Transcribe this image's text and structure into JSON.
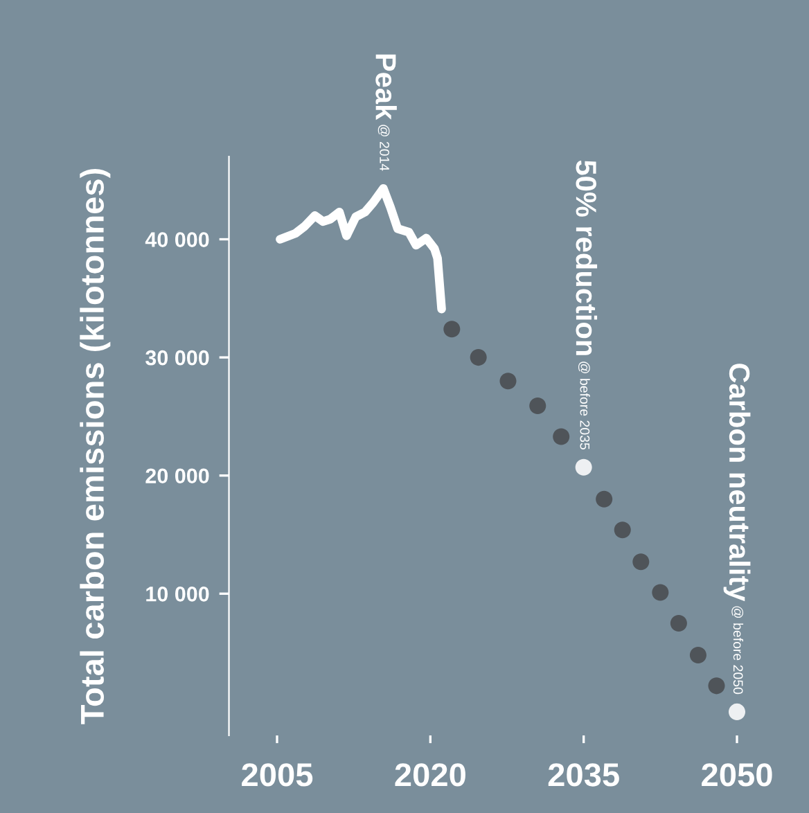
{
  "chart_data": {
    "type": "line",
    "ylabel": "Total carbon emissions (kilotonnes)",
    "xlim": [
      2005,
      2050
    ],
    "xticks": [
      2005,
      2020,
      2035,
      2050
    ],
    "ylim": [
      -2000,
      47000
    ],
    "yticks": [
      {
        "value": 10000,
        "label": "10 000"
      },
      {
        "value": 20000,
        "label": "20 000"
      },
      {
        "value": 30000,
        "label": "30 000"
      },
      {
        "value": 40000,
        "label": "40 000"
      }
    ],
    "series": [
      {
        "color": "#ffffff",
        "marker": "none",
        "x": [
          2005.3,
          2006.8,
          2007.7,
          2008.7,
          2009.5,
          2010.2,
          2011.1,
          2011.8,
          2012.7,
          2013.6,
          2014.4,
          2015.4,
          2016.1,
          2016.8,
          2017.9,
          2018.6,
          2019.6,
          2020.4,
          2020.7,
          2021.1
        ],
        "values": [
          40000,
          40500,
          41100,
          42000,
          41500,
          41700,
          42300,
          40300,
          41900,
          42300,
          43100,
          44300,
          42700,
          40900,
          40600,
          39500,
          40100,
          39200,
          38400,
          34100
        ]
      },
      {
        "type": "scatter",
        "color": "#4f5459",
        "marker": "circle",
        "x": [
          2022.1,
          2024.7,
          2027.6,
          2030.5,
          2032.8,
          2037,
          2038.8,
          2040.6,
          2042.5,
          2044.3,
          2046.2,
          2048
        ],
        "values": [
          32400,
          30000,
          28000,
          25900,
          23300,
          18000,
          15400,
          12700,
          10100,
          7500,
          4800,
          2200
        ]
      },
      {
        "type": "scatter",
        "color": "#eef0f2",
        "marker": "circle",
        "x": [
          2035,
          2050
        ],
        "values": [
          20700,
          0
        ]
      }
    ],
    "annotations": [
      "Peak",
      {
        "text": "@ 2014",
        "x": 2015.4,
        "y": 44300
      },
      "50% reduction",
      {
        "text": "@ before 2035",
        "x": 2035,
        "y": 20700
      },
      "Carbon neutrality",
      {
        "text": "@ before 2050",
        "x": 2050,
        "y": 0
      }
    ]
  }
}
